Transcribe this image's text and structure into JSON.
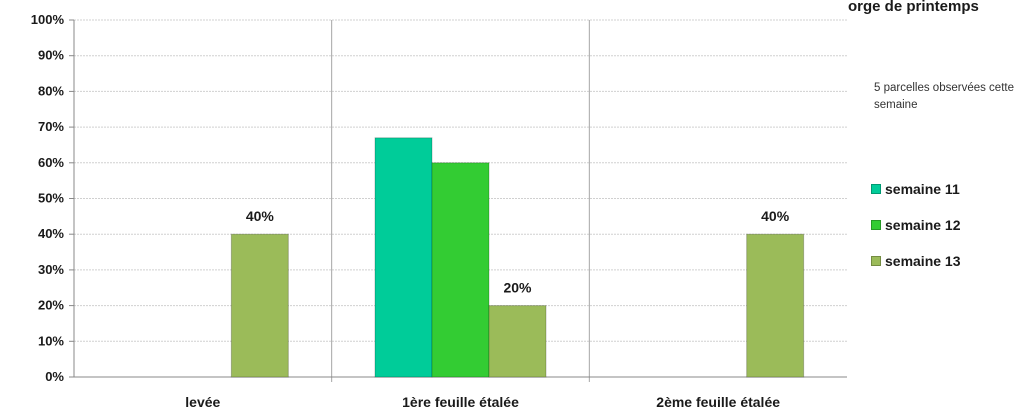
{
  "chart_data": {
    "type": "bar",
    "title": "orge de printemps",
    "note": "5 parcelles observées cette semaine",
    "categories": [
      "levée",
      "1ère feuille étalée",
      "2ème feuille étalée"
    ],
    "series": [
      {
        "name": "semaine 11",
        "color": "#00cc99",
        "values": [
          0,
          67,
          0
        ]
      },
      {
        "name": "semaine 12",
        "color": "#33cc33",
        "values": [
          0,
          60,
          0
        ]
      },
      {
        "name": "semaine 13",
        "color": "#9bbb59",
        "values": [
          40,
          20,
          40
        ]
      }
    ],
    "data_labels": [
      {
        "series": 2,
        "category": 0,
        "text": "40%"
      },
      {
        "series": 2,
        "category": 1,
        "text": "20%"
      },
      {
        "series": 2,
        "category": 2,
        "text": "40%"
      }
    ],
    "y_ticks": [
      "0%",
      "10%",
      "20%",
      "30%",
      "40%",
      "50%",
      "60%",
      "70%",
      "80%",
      "90%",
      "100%"
    ],
    "ylim": [
      0,
      100
    ],
    "grid": true,
    "legend_position": "right"
  }
}
